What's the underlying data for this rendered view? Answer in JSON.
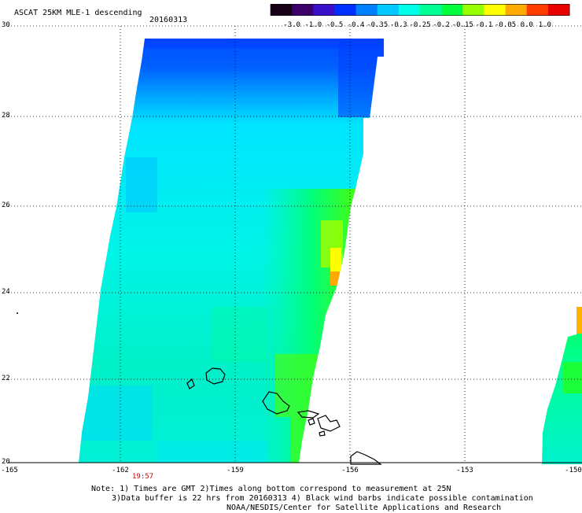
{
  "header": {
    "title": "ASCAT 25KM MLE-1 descending",
    "date": "20160313"
  },
  "colorbar": {
    "labels": [
      "-3.0",
      "-1.0",
      "-0.5",
      "-0.4",
      "-0.35",
      "-0.3",
      "-0.25",
      "-0.2",
      "-0.15",
      "-0.1",
      "-0.05",
      "0.0",
      "1.0"
    ],
    "colors": [
      "#150015",
      "#3c0068",
      "#3a10c8",
      "#0030ff",
      "#0080ff",
      "#00c8ff",
      "#00ffe6",
      "#00ff96",
      "#00ff3c",
      "#96ff00",
      "#ffff00",
      "#ffaa00",
      "#ff3c00",
      "#e60000"
    ]
  },
  "axes": {
    "lat_labels": [
      "30",
      "28",
      "26",
      "24",
      "22",
      "20"
    ],
    "lon_labels": [
      "-165",
      "-162",
      "-159",
      "-156",
      "-153",
      "-150"
    ],
    "lat_range": [
      20,
      30
    ],
    "lon_range": [
      -165,
      -150
    ],
    "grid": "dotted"
  },
  "swath_time": "19:57",
  "notes": {
    "line1": "Note: 1) Times are GMT 2)Times along bottom correspond to measurement at 25N",
    "line2": "3)Data buffer is 22 hrs from 20160313 4) Black wind barbs indicate possible contamination",
    "line3": "NOAA/NESDIS/Center for Satellite Applications and Research"
  }
}
